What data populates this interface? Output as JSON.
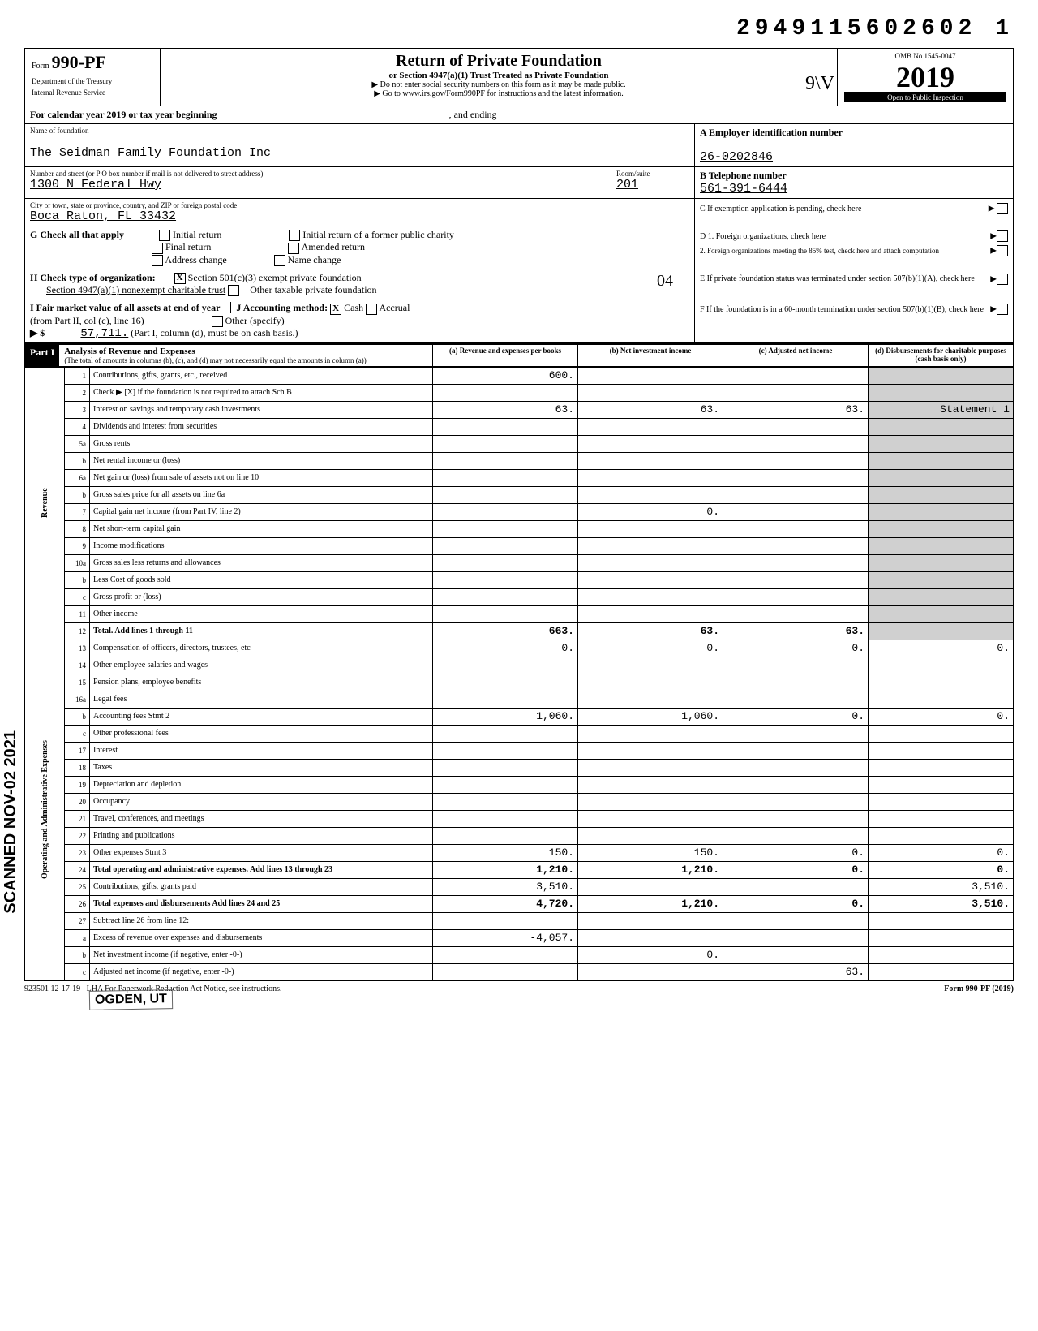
{
  "header_number": "2949115602602 1",
  "form": {
    "prefix": "Form",
    "number": "990-PF",
    "dept": "Department of the Treasury",
    "irs": "Internal Revenue Service"
  },
  "title": {
    "main": "Return of Private Foundation",
    "sub": "or Section 4947(a)(1) Trust Treated as Private Foundation",
    "note1": "▶ Do not enter social security numbers on this form as it may be made public.",
    "note2": "▶ Go to www.irs.gov/Form990PF for instructions and the latest information."
  },
  "omb": "OMB No 1545-0047",
  "year": "2019",
  "inspection": "Open to Public Inspection",
  "handwrite_init": "9\\V",
  "calendar_line": "For calendar year 2019 or tax year beginning",
  "ending": ", and ending",
  "name_label": "Name of foundation",
  "foundation_name": "The Seidman Family Foundation Inc",
  "ein_label": "A Employer identification number",
  "ein": "26-0202846",
  "addr_label": "Number and street (or P O box number if mail is not delivered to street address)",
  "addr": "1300 N Federal Hwy",
  "room_label": "Room/suite",
  "room": "201",
  "phone_label": "B Telephone number",
  "phone": "561-391-6444",
  "city_label": "City or town, state or province, country, and ZIP or foreign postal code",
  "city": "Boca Raton, FL  33432",
  "c_label": "C If exemption application is pending, check here",
  "g_label": "G  Check all that apply",
  "g_opts": [
    "Initial return",
    "Final return",
    "Address change",
    "Initial return of a former public charity",
    "Amended return",
    "Name change"
  ],
  "d_label": "D 1. Foreign organizations, check here",
  "d2_label": "2. Foreign organizations meeting the 85% test, check here and attach computation",
  "h_label": "H  Check type of organization:",
  "h_501": "Section 501(c)(3) exempt private foundation",
  "h_4947": "Section 4947(a)(1) nonexempt charitable trust",
  "h_other": "Other taxable private foundation",
  "hand04": "04",
  "e_label": "E If private foundation status was terminated under section 507(b)(1)(A), check here",
  "i_label": "I  Fair market value of all assets at end of year",
  "i_sub": "(from Part II, col (c), line 16)",
  "i_val": "57,711.",
  "i_note": "(Part I, column (d), must be on cash basis.)",
  "j_label": "J  Accounting method:",
  "j_cash": "Cash",
  "j_accrual": "Accrual",
  "j_other": "Other (specify)",
  "f_label": "F If the foundation is in a 60-month termination under section 507(b)(1)(B), check here",
  "part1": "Part I",
  "part1_title": "Analysis of Revenue and Expenses",
  "part1_note": "(The total of amounts in columns (b), (c), and (d) may not necessarily equal the amounts in column (a))",
  "cols": {
    "a": "(a) Revenue and expenses per books",
    "b": "(b) Net investment income",
    "c": "(c) Adjusted net income",
    "d": "(d) Disbursements for charitable purposes (cash basis only)"
  },
  "rows": [
    {
      "n": "1",
      "desc": "Contributions, gifts, grants, etc., received",
      "a": "600.",
      "b": "",
      "c": "",
      "d": ""
    },
    {
      "n": "2",
      "desc": "Check ▶ [X] if the foundation is not required to attach Sch B",
      "a": "",
      "b": "",
      "c": "",
      "d": ""
    },
    {
      "n": "3",
      "desc": "Interest on savings and temporary cash investments",
      "a": "63.",
      "b": "63.",
      "c": "63.",
      "d": "Statement 1"
    },
    {
      "n": "4",
      "desc": "Dividends and interest from securities",
      "a": "",
      "b": "",
      "c": "",
      "d": ""
    },
    {
      "n": "5a",
      "desc": "Gross rents",
      "a": "",
      "b": "",
      "c": "",
      "d": ""
    },
    {
      "n": "b",
      "desc": "Net rental income or (loss)",
      "a": "",
      "b": "",
      "c": "",
      "d": ""
    },
    {
      "n": "6a",
      "desc": "Net gain or (loss) from sale of assets not on line 10",
      "a": "",
      "b": "",
      "c": "",
      "d": ""
    },
    {
      "n": "b",
      "desc": "Gross sales price for all assets on line 6a",
      "a": "",
      "b": "",
      "c": "",
      "d": ""
    },
    {
      "n": "7",
      "desc": "Capital gain net income (from Part IV, line 2)",
      "a": "",
      "b": "0.",
      "c": "",
      "d": ""
    },
    {
      "n": "8",
      "desc": "Net short-term capital gain",
      "a": "",
      "b": "",
      "c": "",
      "d": ""
    },
    {
      "n": "9",
      "desc": "Income modifications",
      "a": "",
      "b": "",
      "c": "",
      "d": ""
    },
    {
      "n": "10a",
      "desc": "Gross sales less returns and allowances",
      "a": "",
      "b": "",
      "c": "",
      "d": ""
    },
    {
      "n": "b",
      "desc": "Less Cost of goods sold",
      "a": "",
      "b": "",
      "c": "",
      "d": ""
    },
    {
      "n": "c",
      "desc": "Gross profit or (loss)",
      "a": "",
      "b": "",
      "c": "",
      "d": ""
    },
    {
      "n": "11",
      "desc": "Other income",
      "a": "",
      "b": "",
      "c": "",
      "d": ""
    },
    {
      "n": "12",
      "desc": "Total. Add lines 1 through 11",
      "a": "663.",
      "b": "63.",
      "c": "63.",
      "d": "",
      "bold": true
    },
    {
      "n": "13",
      "desc": "Compensation of officers, directors, trustees, etc",
      "a": "0.",
      "b": "0.",
      "c": "0.",
      "d": "0."
    },
    {
      "n": "14",
      "desc": "Other employee salaries and wages",
      "a": "",
      "b": "",
      "c": "",
      "d": ""
    },
    {
      "n": "15",
      "desc": "Pension plans, employee benefits",
      "a": "",
      "b": "",
      "c": "",
      "d": ""
    },
    {
      "n": "16a",
      "desc": "Legal fees",
      "a": "",
      "b": "",
      "c": "",
      "d": ""
    },
    {
      "n": "b",
      "desc": "Accounting fees                  Stmt 2",
      "a": "1,060.",
      "b": "1,060.",
      "c": "0.",
      "d": "0."
    },
    {
      "n": "c",
      "desc": "Other professional fees",
      "a": "",
      "b": "",
      "c": "",
      "d": ""
    },
    {
      "n": "17",
      "desc": "Interest",
      "a": "",
      "b": "",
      "c": "",
      "d": ""
    },
    {
      "n": "18",
      "desc": "Taxes",
      "a": "",
      "b": "",
      "c": "",
      "d": ""
    },
    {
      "n": "19",
      "desc": "Depreciation and depletion",
      "a": "",
      "b": "",
      "c": "",
      "d": ""
    },
    {
      "n": "20",
      "desc": "Occupancy",
      "a": "",
      "b": "",
      "c": "",
      "d": ""
    },
    {
      "n": "21",
      "desc": "Travel, conferences, and meetings",
      "a": "",
      "b": "",
      "c": "",
      "d": ""
    },
    {
      "n": "22",
      "desc": "Printing and publications",
      "a": "",
      "b": "",
      "c": "",
      "d": ""
    },
    {
      "n": "23",
      "desc": "Other expenses                   Stmt 3",
      "a": "150.",
      "b": "150.",
      "c": "0.",
      "d": "0."
    },
    {
      "n": "24",
      "desc": "Total operating and administrative expenses. Add lines 13 through 23",
      "a": "1,210.",
      "b": "1,210.",
      "c": "0.",
      "d": "0.",
      "bold": true
    },
    {
      "n": "25",
      "desc": "Contributions, gifts, grants paid",
      "a": "3,510.",
      "b": "",
      "c": "",
      "d": "3,510."
    },
    {
      "n": "26",
      "desc": "Total expenses and disbursements Add lines 24 and 25",
      "a": "4,720.",
      "b": "1,210.",
      "c": "0.",
      "d": "3,510.",
      "bold": true
    },
    {
      "n": "27",
      "desc": "Subtract line 26 from line 12:",
      "a": "",
      "b": "",
      "c": "",
      "d": ""
    },
    {
      "n": "a",
      "desc": "Excess of revenue over expenses and disbursements",
      "a": "-4,057.",
      "b": "",
      "c": "",
      "d": ""
    },
    {
      "n": "b",
      "desc": "Net investment income (if negative, enter -0-)",
      "a": "",
      "b": "0.",
      "c": "",
      "d": ""
    },
    {
      "n": "c",
      "desc": "Adjusted net income (if negative, enter -0-)",
      "a": "",
      "b": "",
      "c": "63.",
      "d": ""
    }
  ],
  "vert_revenue": "Revenue",
  "vert_expenses": "Operating and Administrative Expenses",
  "footer_code": "923501 12-17-19",
  "footer_lha": "LHA  For Paperwork Reduction Act Notice, see instructions.",
  "footer_form": "Form 990-PF (2019)",
  "ogden": "OGDEN, UT",
  "scanned": "SCANNED NOV-02 2021"
}
